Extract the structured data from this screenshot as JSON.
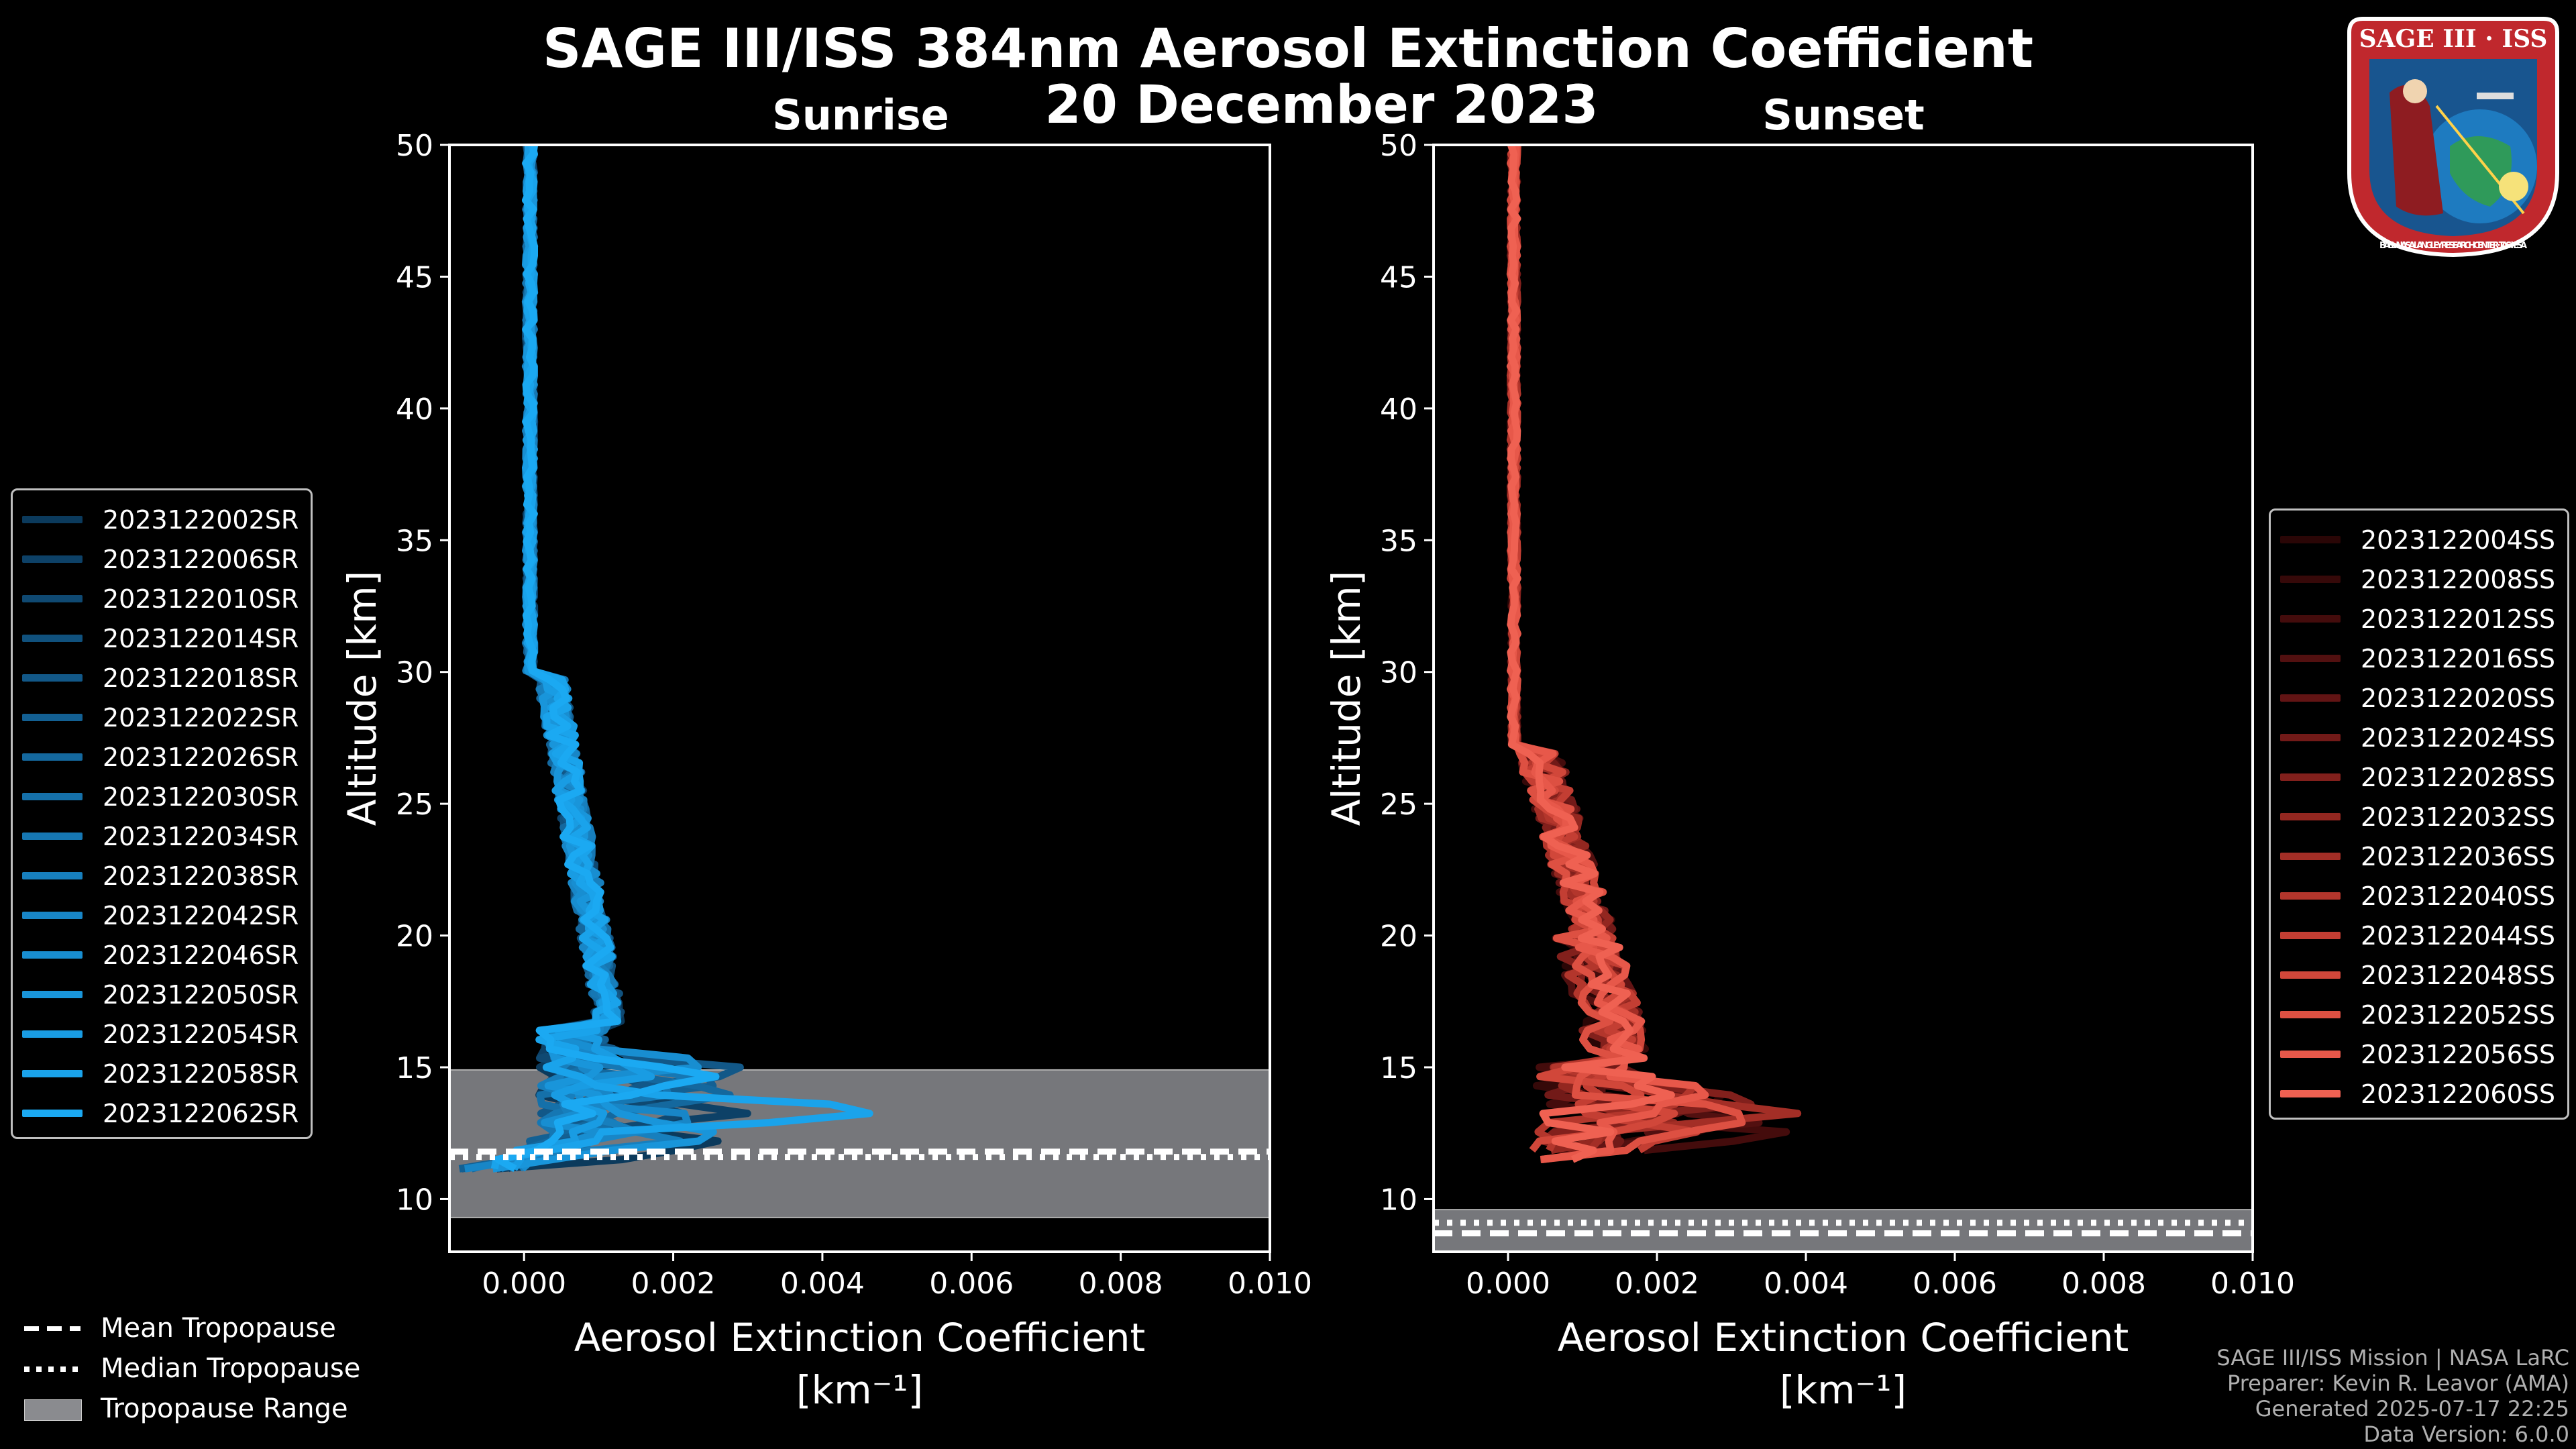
{
  "title": "SAGE III/ISS 384nm Aerosol Extinction Coefficient",
  "subtitle": "20 December 2023",
  "logo": {
    "text": "SAGE III · ISS",
    "ring_text": "BALL · NASA LANGLEY RESEARCH CENTER · TAS-I · ESA"
  },
  "chart_data": [
    {
      "type": "line",
      "title": "Sunrise",
      "xlabel": "Aerosol Extinction Coefficient",
      "xunit": "[km⁻¹]",
      "ylabel": "Altitude [km]",
      "xlim": [
        -0.001,
        0.01
      ],
      "ylim": [
        8,
        50
      ],
      "xticks": [
        0.0,
        0.002,
        0.004,
        0.006,
        0.008,
        0.01
      ],
      "xtick_labels": [
        "0.000",
        "0.002",
        "0.004",
        "0.006",
        "0.008",
        "0.010"
      ],
      "yticks": [
        10,
        15,
        20,
        25,
        30,
        35,
        40,
        45,
        50
      ],
      "tropopause": {
        "mean": 11.8,
        "median": 11.6,
        "range": [
          9.3,
          14.9
        ]
      },
      "series": [
        {
          "name": "2023122002SR",
          "color": "#0b3a5c"
        },
        {
          "name": "2023122006SR",
          "color": "#0d4167"
        },
        {
          "name": "2023122010SR",
          "color": "#0f4972"
        },
        {
          "name": "2023122014SR",
          "color": "#10517d"
        },
        {
          "name": "2023122018SR",
          "color": "#125888"
        },
        {
          "name": "2023122022SR",
          "color": "#136093"
        },
        {
          "name": "2023122026SR",
          "color": "#14689e"
        },
        {
          "name": "2023122030SR",
          "color": "#1570a9"
        },
        {
          "name": "2023122034SR",
          "color": "#1677b3"
        },
        {
          "name": "2023122038SR",
          "color": "#177fbd"
        },
        {
          "name": "2023122042SR",
          "color": "#1886c7"
        },
        {
          "name": "2023122046SR",
          "color": "#188ed1"
        },
        {
          "name": "2023122050SR",
          "color": "#1995da"
        },
        {
          "name": "2023122054SR",
          "color": "#199ce3"
        },
        {
          "name": "2023122058SR",
          "color": "#1aa3eb"
        },
        {
          "name": "2023122062SR",
          "color": "#1ba9f2"
        }
      ]
    },
    {
      "type": "line",
      "title": "Sunset",
      "xlabel": "Aerosol Extinction Coefficient",
      "xunit": "[km⁻¹]",
      "ylabel": "Altitude [km]",
      "xlim": [
        -0.001,
        0.01
      ],
      "ylim": [
        8,
        50
      ],
      "xticks": [
        0.0,
        0.002,
        0.004,
        0.006,
        0.008,
        0.01
      ],
      "xtick_labels": [
        "0.000",
        "0.002",
        "0.004",
        "0.006",
        "0.008",
        "0.010"
      ],
      "yticks": [
        10,
        15,
        20,
        25,
        30,
        35,
        40,
        45,
        50
      ],
      "tropopause": {
        "mean": 8.7,
        "median": 9.1,
        "range": [
          8.0,
          9.6
        ]
      },
      "series": [
        {
          "name": "2023122004SS",
          "color": "#2a0606"
        },
        {
          "name": "2023122008SS",
          "color": "#360909"
        },
        {
          "name": "2023122012SS",
          "color": "#440c0c"
        },
        {
          "name": "2023122016SS",
          "color": "#521010"
        },
        {
          "name": "2023122020SS",
          "color": "#621414"
        },
        {
          "name": "2023122024SS",
          "color": "#721a18"
        },
        {
          "name": "2023122028SS",
          "color": "#82201c"
        },
        {
          "name": "2023122032SS",
          "color": "#932720"
        },
        {
          "name": "2023122036SS",
          "color": "#a32e26"
        },
        {
          "name": "2023122040SS",
          "color": "#b3362c"
        },
        {
          "name": "2023122044SS",
          "color": "#c33e33"
        },
        {
          "name": "2023122048SS",
          "color": "#d1473a"
        },
        {
          "name": "2023122052SS",
          "color": "#dd5042"
        },
        {
          "name": "2023122056SS",
          "color": "#e7584a"
        },
        {
          "name": "2023122060SS",
          "color": "#ef6152"
        }
      ]
    }
  ],
  "bottom_legend": {
    "mean": "Mean Tropopause",
    "median": "Median Tropopause",
    "range": "Tropopause Range"
  },
  "credits": {
    "line1": "SAGE III/ISS Mission | NASA LaRC",
    "line2": "Preparer: Kevin R. Leavor (AMA)",
    "line3": "Generated 2025-07-17 22:25",
    "line4": "Data Version: 6.0.0"
  }
}
